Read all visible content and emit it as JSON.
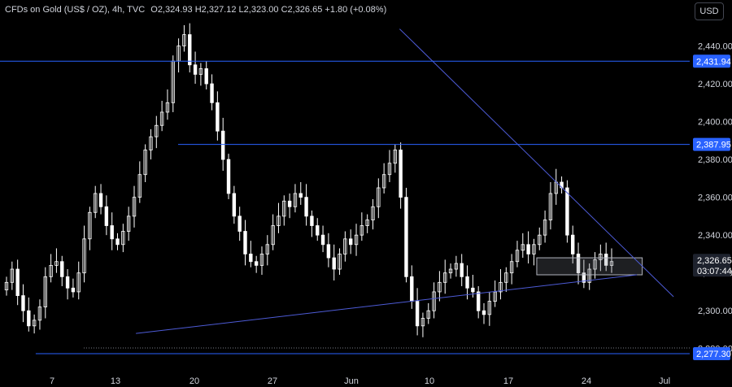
{
  "header": {
    "symbol": "CFDs on Gold (US$ / OZ), 4h, TVC",
    "open_label": "O",
    "open": "2,324.93",
    "high_label": "H",
    "high": "2,327.12",
    "low_label": "L",
    "low": "2,323.00",
    "close_label": "C",
    "close": "2,326.65",
    "change": "+1.80 (+0.08%)"
  },
  "currency": "USD",
  "colors": {
    "background": "#000000",
    "levels": "#2962ff",
    "trend": "#4d5bd6",
    "price_badge": "#1e222d",
    "candles": "#ffffff"
  },
  "chart_data": {
    "type": "candlestick",
    "timeframe": "4h",
    "ylim": [
      2270,
      2460
    ],
    "x_tick_labels": [
      "7",
      "13",
      "20",
      "27",
      "Jun",
      "10",
      "17",
      "24",
      "Jul"
    ],
    "y_tick_labels": [
      "2,280.00",
      "2,300.00",
      "2,320.00",
      "2,340.00",
      "2,360.00",
      "2,380.00",
      "2,400.00",
      "2,420.00",
      "2,440.00"
    ],
    "y_tick_values": [
      2280,
      2300,
      2320,
      2340,
      2360,
      2380,
      2400,
      2420,
      2440
    ],
    "horizontal_levels": [
      {
        "value": 2431.94,
        "label": "2,431.94"
      },
      {
        "value": 2387.95,
        "label": "2,387.95"
      },
      {
        "value": 2277.3,
        "label": "2,277.30"
      }
    ],
    "current_price": {
      "value": 2326.65,
      "label": "2,326.65",
      "countdown": "03:07:44"
    },
    "zone": {
      "low": 2319,
      "high": 2328
    },
    "trendline_upper": [
      [
        20,
        2449
      ],
      [
        29,
        2319
      ]
    ],
    "trendline_lower": [
      [
        10,
        2288
      ],
      [
        29,
        2319
      ]
    ],
    "x_range": [
      5,
      31
    ],
    "ohlc_closes": [
      2315,
      2322,
      2308,
      2300,
      2292,
      2295,
      2302,
      2318,
      2324,
      2326,
      2318,
      2312,
      2310,
      2320,
      2338,
      2352,
      2362,
      2355,
      2345,
      2338,
      2335,
      2342,
      2350,
      2360,
      2372,
      2385,
      2392,
      2398,
      2405,
      2410,
      2432,
      2440,
      2446,
      2430,
      2425,
      2428,
      2420,
      2410,
      2395,
      2380,
      2362,
      2350,
      2342,
      2330,
      2326,
      2324,
      2330,
      2335,
      2345,
      2350,
      2358,
      2355,
      2362,
      2360,
      2350,
      2345,
      2340,
      2335,
      2328,
      2322,
      2330,
      2338,
      2335,
      2340,
      2345,
      2348,
      2355,
      2365,
      2372,
      2378,
      2385,
      2360,
      2318,
      2305,
      2292,
      2296,
      2300,
      2310,
      2315,
      2320,
      2322,
      2325,
      2318,
      2312,
      2310,
      2300,
      2298,
      2305,
      2310,
      2315,
      2320,
      2326,
      2332,
      2335,
      2330,
      2335,
      2340,
      2348,
      2362,
      2368,
      2365,
      2340,
      2330,
      2320,
      2315,
      2322,
      2327,
      2330,
      2324,
      2326
    ]
  }
}
